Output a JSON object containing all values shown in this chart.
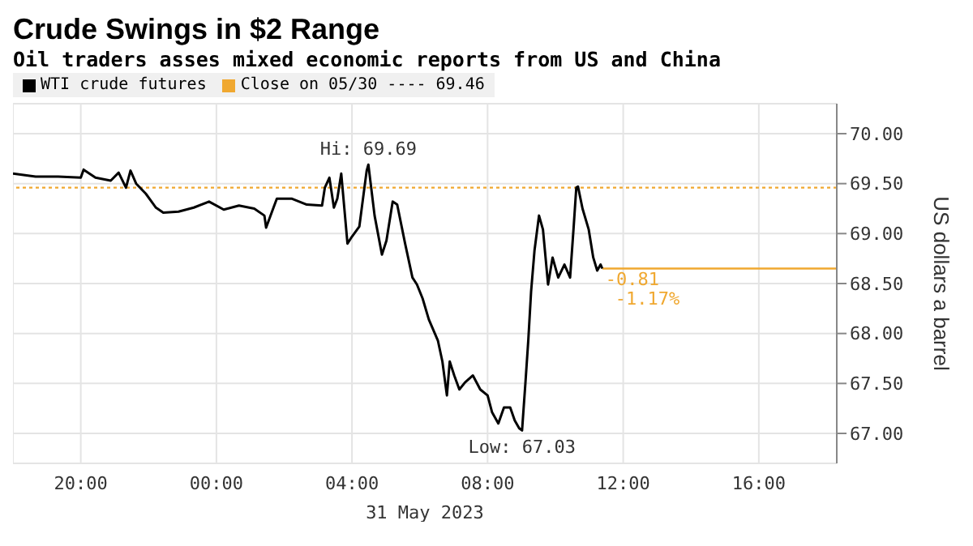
{
  "chart_data": {
    "type": "line",
    "title": "Crude Swings in $2 Range",
    "subtitle": "Oil traders asses mixed economic reports from US and China",
    "xlabel": "31 May 2023",
    "ylabel": "US dollars a barrel",
    "x": [
      "2023-05-30T18:00",
      "2023-05-30T18:40",
      "2023-05-30T19:20",
      "2023-05-30T20:00",
      "2023-05-30T20:05",
      "2023-05-30T20:26",
      "2023-05-30T20:53",
      "2023-05-30T21:07",
      "2023-05-30T21:20",
      "2023-05-30T21:28",
      "2023-05-30T21:38",
      "2023-05-30T21:55",
      "2023-05-30T22:13",
      "2023-05-30T22:26",
      "2023-05-30T22:53",
      "2023-05-30T23:20",
      "2023-05-30T23:47",
      "2023-05-31T00:13",
      "2023-05-31T00:40",
      "2023-05-31T01:07",
      "2023-05-31T01:25",
      "2023-05-31T01:28",
      "2023-05-31T01:47",
      "2023-05-31T02:13",
      "2023-05-31T02:40",
      "2023-05-31T03:07",
      "2023-05-31T03:12",
      "2023-05-31T03:20",
      "2023-05-31T03:28",
      "2023-05-31T03:34",
      "2023-05-31T03:41",
      "2023-05-31T03:52",
      "2023-05-31T04:00",
      "2023-05-31T04:13",
      "2023-05-31T04:26",
      "2023-05-31T04:29",
      "2023-05-31T04:40",
      "2023-05-31T04:53",
      "2023-05-31T05:01",
      "2023-05-31T05:12",
      "2023-05-31T05:20",
      "2023-05-31T05:34",
      "2023-05-31T05:47",
      "2023-05-31T05:55",
      "2023-05-31T06:05",
      "2023-05-31T06:16",
      "2023-05-31T06:32",
      "2023-05-31T06:40",
      "2023-05-31T06:48",
      "2023-05-31T06:53",
      "2023-05-31T07:01",
      "2023-05-31T07:10",
      "2023-05-31T07:20",
      "2023-05-31T07:34",
      "2023-05-31T07:47",
      "2023-05-31T08:00",
      "2023-05-31T08:08",
      "2023-05-31T08:19",
      "2023-05-31T08:29",
      "2023-05-31T08:40",
      "2023-05-31T08:48",
      "2023-05-31T08:56",
      "2023-05-31T09:01",
      "2023-05-31T09:07",
      "2023-05-31T09:12",
      "2023-05-31T09:17",
      "2023-05-31T09:23",
      "2023-05-31T09:31",
      "2023-05-31T09:38",
      "2023-05-31T09:47",
      "2023-05-31T09:55",
      "2023-05-31T10:05",
      "2023-05-31T10:16",
      "2023-05-31T10:26",
      "2023-05-31T10:32",
      "2023-05-31T10:37",
      "2023-05-31T10:40",
      "2023-05-31T10:48",
      "2023-05-31T10:59",
      "2023-05-31T11:07",
      "2023-05-31T11:14",
      "2023-05-31T11:20",
      "2023-05-31T11:23"
    ],
    "series": [
      {
        "name": "WTI crude futures",
        "color": "#000000",
        "values": [
          69.6,
          69.57,
          69.57,
          69.56,
          69.64,
          69.56,
          69.53,
          69.61,
          69.46,
          69.63,
          69.5,
          69.4,
          69.26,
          69.21,
          69.22,
          69.26,
          69.32,
          69.24,
          69.28,
          69.25,
          69.18,
          69.06,
          69.35,
          69.35,
          69.29,
          69.28,
          69.46,
          69.56,
          69.26,
          69.35,
          69.6,
          68.9,
          68.97,
          69.07,
          69.63,
          69.69,
          69.18,
          68.79,
          68.93,
          69.32,
          69.29,
          68.9,
          68.56,
          68.49,
          68.35,
          68.14,
          67.93,
          67.72,
          67.38,
          67.72,
          67.58,
          67.44,
          67.51,
          67.58,
          67.44,
          67.38,
          67.21,
          67.1,
          67.26,
          67.26,
          67.13,
          67.05,
          67.03,
          67.51,
          67.93,
          68.42,
          68.83,
          69.18,
          69.04,
          68.49,
          68.76,
          68.56,
          68.69,
          68.56,
          69.04,
          69.46,
          69.47,
          69.25,
          69.04,
          68.76,
          68.63,
          68.69,
          68.65
        ]
      }
    ],
    "xlim": [
      "2023-05-30T18:00",
      "2023-05-31T18:18"
    ],
    "ylim": [
      66.7,
      70.3
    ],
    "xticks": [
      {
        "value": "2023-05-30T20:00",
        "label": "20:00"
      },
      {
        "value": "2023-05-31T00:00",
        "label": "00:00"
      },
      {
        "value": "2023-05-31T04:00",
        "label": "04:00"
      },
      {
        "value": "2023-05-31T08:00",
        "label": "08:00"
      },
      {
        "value": "2023-05-31T12:00",
        "label": "12:00"
      },
      {
        "value": "2023-05-31T16:00",
        "label": "16:00"
      }
    ],
    "yticks": [
      {
        "value": 67,
        "label": "67.00"
      },
      {
        "value": 67.5,
        "label": "67.50"
      },
      {
        "value": 68,
        "label": "68.00"
      },
      {
        "value": 68.5,
        "label": "68.50"
      },
      {
        "value": 69,
        "label": "69.00"
      },
      {
        "value": 69.5,
        "label": "69.50"
      },
      {
        "value": 70,
        "label": "70.00"
      }
    ],
    "ref_lines": [
      {
        "axis": "y",
        "value": 69.46,
        "label": "Close on 05/30 ---- 69.46",
        "color": "#f0a830",
        "line_style": "dotted"
      },
      {
        "axis": "y",
        "value": 68.65,
        "label": null,
        "color": "#f0a830",
        "line_style": "solid"
      }
    ],
    "annotations": [
      {
        "text": "Hi: 69.69",
        "x": "2023-05-31T04:29",
        "y": 69.69
      },
      {
        "text": "Low: 67.03",
        "x": "2023-05-31T09:01",
        "y": 67.03
      },
      {
        "text": "-0.81",
        "x": "2023-05-31T11:23",
        "y": 68.65
      },
      {
        "text": "-1.17%",
        "x": "2023-05-31T11:23",
        "y": 68.65
      }
    ],
    "grid": true,
    "legend": "top left",
    "marker": "none",
    "line_style": "solid"
  }
}
